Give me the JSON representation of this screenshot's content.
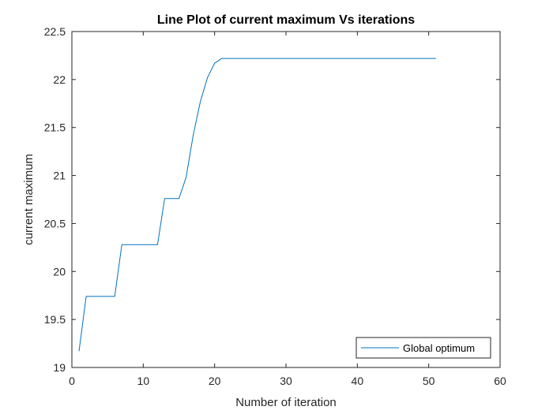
{
  "chart_data": {
    "type": "line",
    "title": "Line Plot of current maximum Vs iterations",
    "xlabel": "Number of iteration",
    "ylabel": "current maximum",
    "xlim": [
      0,
      60
    ],
    "ylim": [
      19,
      22.5
    ],
    "xticks": [
      0,
      10,
      20,
      30,
      40,
      50,
      60
    ],
    "yticks": [
      19,
      19.5,
      20,
      20.5,
      21,
      21.5,
      22,
      22.5
    ],
    "xtick_labels": [
      "0",
      "10",
      "20",
      "30",
      "40",
      "50",
      "60"
    ],
    "ytick_labels": [
      "19",
      "19.5",
      "20",
      "20.5",
      "21",
      "21.5",
      "22",
      "22.5"
    ],
    "grid": false,
    "legend_position": "bottom-right",
    "line_color": "#0072BD",
    "series": [
      {
        "name": "Global optimum",
        "x": [
          1,
          2,
          3,
          4,
          5,
          6,
          7,
          8,
          9,
          10,
          11,
          12,
          13,
          14,
          15,
          16,
          17,
          18,
          19,
          20,
          21,
          22,
          23,
          24,
          25,
          26,
          27,
          28,
          29,
          30,
          31,
          32,
          33,
          34,
          35,
          36,
          37,
          38,
          39,
          40,
          41,
          42,
          43,
          44,
          45,
          46,
          47,
          48,
          49,
          50,
          51
        ],
        "y": [
          19.17,
          19.74,
          19.74,
          19.74,
          19.74,
          19.74,
          20.28,
          20.28,
          20.28,
          20.28,
          20.28,
          20.28,
          20.76,
          20.76,
          20.76,
          20.98,
          21.42,
          21.77,
          22.02,
          22.17,
          22.22,
          22.22,
          22.22,
          22.22,
          22.22,
          22.22,
          22.22,
          22.22,
          22.22,
          22.22,
          22.22,
          22.22,
          22.22,
          22.22,
          22.22,
          22.22,
          22.22,
          22.22,
          22.22,
          22.22,
          22.22,
          22.22,
          22.22,
          22.22,
          22.22,
          22.22,
          22.22,
          22.22,
          22.22,
          22.22,
          22.22
        ]
      }
    ]
  }
}
